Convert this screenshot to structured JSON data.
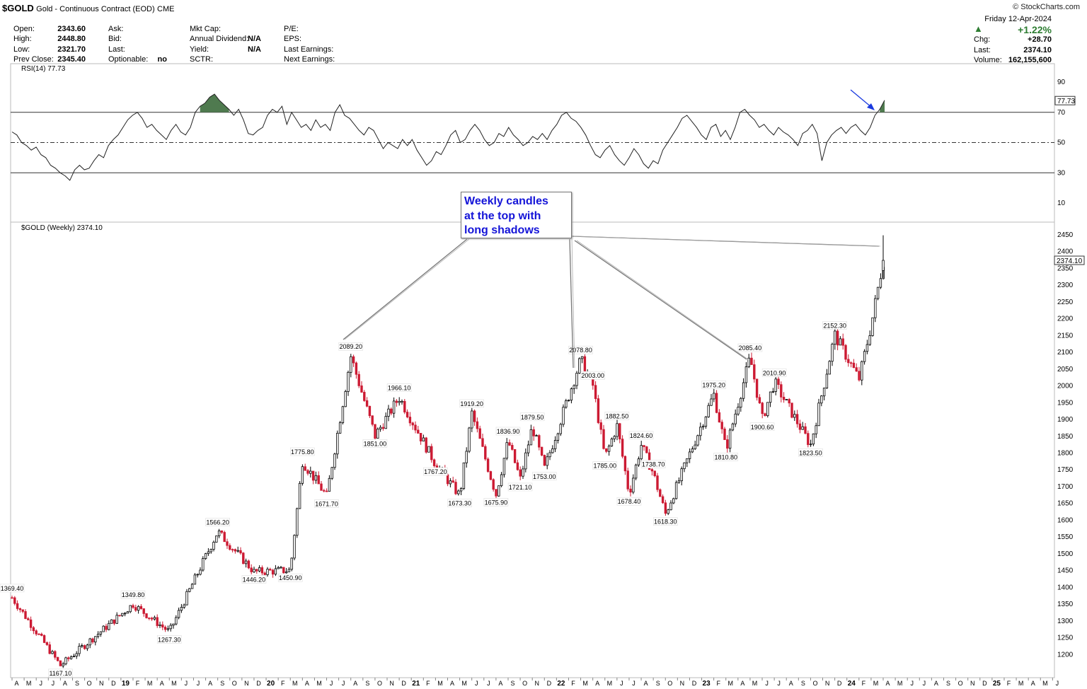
{
  "header": {
    "symbol": "$GOLD",
    "description": "Gold - Continuous Contract (EOD)",
    "exchange": "CME",
    "brand": "© StockCharts.com",
    "quote_col1": [
      {
        "label": "Open:",
        "value": "2343.60"
      },
      {
        "label": "High:",
        "value": "2448.80"
      },
      {
        "label": "Low:",
        "value": "2321.70"
      },
      {
        "label": "Prev Close:",
        "value": "2345.40"
      }
    ],
    "quote_col2": [
      {
        "label": "Ask:",
        "value": ""
      },
      {
        "label": "Bid:",
        "value": ""
      },
      {
        "label": "Last:",
        "value": ""
      },
      {
        "label": "Optionable:",
        "value": "no"
      }
    ],
    "quote_col3": [
      {
        "label": "Mkt Cap:",
        "value": ""
      },
      {
        "label": "Annual Dividend:",
        "value": "N/A"
      },
      {
        "label": "Yield:",
        "value": "N/A"
      },
      {
        "label": "SCTR:",
        "value": ""
      }
    ],
    "quote_col4": [
      {
        "label": "P/E:",
        "value": ""
      },
      {
        "label": "EPS:",
        "value": ""
      },
      {
        "label": "Last Earnings:",
        "value": ""
      },
      {
        "label": "Next Earnings:",
        "value": ""
      }
    ],
    "date": "Friday  12-Apr-2024",
    "pct_change": "+1.22%",
    "chg_label": "Chg:",
    "chg_value": "+28.70",
    "last_label": "Last:",
    "last_value": "2374.10",
    "volume_label": "Volume:",
    "volume_value": "162,155,600",
    "up_color": "#2e7d32"
  },
  "annotation": {
    "callout_lines": [
      "Weekly candles",
      "at the top with",
      "long shadows"
    ],
    "text_color": "#1414d8"
  },
  "chart_data": [
    {
      "type": "line",
      "name": "RSI panel",
      "title": "RSI(14) 77.73",
      "current_label": "77.73",
      "ylim": [
        0,
        100
      ],
      "y_ticks": [
        10,
        30,
        50,
        70,
        90
      ],
      "reference_lines": [
        30,
        50,
        70
      ],
      "overbought_fill_color": "#4f7a4f",
      "x_start": "2018-04",
      "x_end": "2024-04",
      "values": [
        57,
        55,
        50,
        48,
        45,
        47,
        42,
        40,
        35,
        33,
        30,
        28,
        25,
        32,
        35,
        32,
        33,
        38,
        42,
        40,
        48,
        52,
        55,
        60,
        65,
        68,
        70,
        66,
        60,
        62,
        58,
        55,
        52,
        58,
        62,
        57,
        55,
        60,
        70,
        74,
        76,
        80,
        82,
        78,
        75,
        72,
        68,
        72,
        65,
        56,
        55,
        58,
        60,
        68,
        72,
        70,
        74,
        62,
        70,
        65,
        60,
        62,
        58,
        65,
        60,
        62,
        58,
        70,
        75,
        68,
        66,
        62,
        58,
        55,
        60,
        58,
        52,
        46,
        50,
        48,
        46,
        52,
        48,
        52,
        45,
        40,
        35,
        38,
        44,
        42,
        48,
        55,
        58,
        50,
        52,
        58,
        62,
        58,
        52,
        48,
        50,
        56,
        54,
        60,
        55,
        52,
        48,
        50,
        54,
        52,
        56,
        52,
        58,
        62,
        68,
        70,
        66,
        64,
        60,
        55,
        48,
        42,
        40,
        45,
        48,
        42,
        38,
        35,
        40,
        46,
        42,
        36,
        33,
        38,
        36,
        45,
        50,
        55,
        60,
        66,
        68,
        64,
        60,
        55,
        52,
        60,
        62,
        54,
        58,
        52,
        60,
        70,
        72,
        68,
        65,
        60,
        62,
        58,
        55,
        60,
        57,
        55,
        52,
        48,
        56,
        58,
        62,
        56,
        38,
        50,
        55,
        58,
        60,
        56,
        60,
        62,
        58,
        55,
        60,
        68,
        72,
        78
      ]
    },
    {
      "type": "candlestick",
      "name": "$GOLD weekly price",
      "title": "$GOLD (Weekly) 2374.10",
      "last_label": "2374.10",
      "ylim": [
        1150,
        2475
      ],
      "y_ticks": [
        1200,
        1250,
        1300,
        1350,
        1400,
        1450,
        1500,
        1550,
        1600,
        1650,
        1700,
        1750,
        1800,
        1850,
        1900,
        1950,
        2000,
        2050,
        2100,
        2150,
        2200,
        2250,
        2300,
        2350,
        2400,
        2450
      ],
      "up_color": "#000000",
      "down_color": "#cc1a33",
      "x_start": "2018-04",
      "x_end": "2024-04",
      "key_points": [
        {
          "date": "2018-04",
          "close": 1369.4,
          "label": "1369.40",
          "label_pos": "above"
        },
        {
          "date": "2018-08",
          "close": 1167.1,
          "label": "1167.10",
          "label_pos": "below"
        },
        {
          "date": "2019-02",
          "close": 1349.8,
          "label": "1349.80",
          "label_pos": "above"
        },
        {
          "date": "2019-05",
          "close": 1267.3,
          "label": "1267.30",
          "label_pos": "below"
        },
        {
          "date": "2019-09",
          "close": 1566.2,
          "label": "1566.20",
          "label_pos": "above"
        },
        {
          "date": "2019-12",
          "close": 1446.2,
          "label": "1446.20",
          "label_pos": "below"
        },
        {
          "date": "2020-03",
          "close": 1450.9,
          "label": "1450.90",
          "label_pos": "below"
        },
        {
          "date": "2020-04",
          "close": 1775.8,
          "label": "1775.80",
          "label_pos": "above"
        },
        {
          "date": "2020-06",
          "close": 1671.7,
          "label": "1671.70",
          "label_pos": "below"
        },
        {
          "date": "2020-08",
          "close": 2089.2,
          "label": "2089.20",
          "label_pos": "above"
        },
        {
          "date": "2020-10",
          "close": 1851.0,
          "label": "1851.00",
          "label_pos": "below"
        },
        {
          "date": "2020-12",
          "close": 1966.1,
          "label": "1966.10",
          "label_pos": "above"
        },
        {
          "date": "2021-03",
          "close": 1767.2,
          "label": "1767.20",
          "label_pos": "below"
        },
        {
          "date": "2021-05",
          "close": 1673.3,
          "label": "1673.30",
          "label_pos": "below"
        },
        {
          "date": "2021-06",
          "close": 1919.2,
          "label": "1919.20",
          "label_pos": "above"
        },
        {
          "date": "2021-08",
          "close": 1675.9,
          "label": "1675.90",
          "label_pos": "below"
        },
        {
          "date": "2021-09",
          "close": 1836.9,
          "label": "1836.90",
          "label_pos": "above"
        },
        {
          "date": "2021-10",
          "close": 1721.1,
          "label": "1721.10",
          "label_pos": "below"
        },
        {
          "date": "2021-11",
          "close": 1879.5,
          "label": "1879.50",
          "label_pos": "above"
        },
        {
          "date": "2021-12",
          "close": 1753.0,
          "label": "1753.00",
          "label_pos": "below"
        },
        {
          "date": "2022-03",
          "close": 2078.8,
          "label": "2078.80",
          "label_pos": "above"
        },
        {
          "date": "2022-04",
          "close": 2003.0,
          "label": "2003.00",
          "label_pos": "above"
        },
        {
          "date": "2022-05",
          "close": 1785.0,
          "label": "1785.00",
          "label_pos": "below"
        },
        {
          "date": "2022-06",
          "close": 1882.5,
          "label": "1882.50",
          "label_pos": "above"
        },
        {
          "date": "2022-07",
          "close": 1678.4,
          "label": "1678.40",
          "label_pos": "below"
        },
        {
          "date": "2022-08",
          "close": 1824.6,
          "label": "1824.60",
          "label_pos": "above"
        },
        {
          "date": "2022-09",
          "close": 1738.7,
          "label": "1738.70",
          "label_pos": "above"
        },
        {
          "date": "2022-10",
          "close": 1618.3,
          "label": "1618.30",
          "label_pos": "below"
        },
        {
          "date": "2023-02",
          "close": 1975.2,
          "label": "1975.20",
          "label_pos": "above"
        },
        {
          "date": "2023-03",
          "close": 1810.8,
          "label": "1810.80",
          "label_pos": "below"
        },
        {
          "date": "2023-05",
          "close": 2085.4,
          "label": "2085.40",
          "label_pos": "above"
        },
        {
          "date": "2023-06",
          "close": 1900.6,
          "label": "1900.60",
          "label_pos": "below"
        },
        {
          "date": "2023-07",
          "close": 2010.9,
          "label": "2010.90",
          "label_pos": "above"
        },
        {
          "date": "2023-10",
          "close": 1823.5,
          "label": "1823.50",
          "label_pos": "below"
        },
        {
          "date": "2023-12",
          "close": 2152.3,
          "label": "2152.30",
          "label_pos": "above"
        },
        {
          "date": "2024-02",
          "close": 2020.0
        },
        {
          "date": "2024-03",
          "close": 2180.0
        },
        {
          "date": "2024-04",
          "close": 2374.1
        }
      ]
    }
  ],
  "x_axis": {
    "labels": [
      "A",
      "M",
      "J",
      "J",
      "A",
      "S",
      "O",
      "N",
      "D",
      "19",
      "F",
      "M",
      "A",
      "M",
      "J",
      "J",
      "A",
      "S",
      "O",
      "N",
      "D",
      "20",
      "F",
      "M",
      "A",
      "M",
      "J",
      "J",
      "A",
      "S",
      "O",
      "N",
      "D",
      "21",
      "F",
      "M",
      "A",
      "M",
      "J",
      "J",
      "A",
      "S",
      "O",
      "N",
      "D",
      "22",
      "F",
      "M",
      "A",
      "M",
      "J",
      "J",
      "A",
      "S",
      "O",
      "N",
      "D",
      "23",
      "F",
      "M",
      "A",
      "M",
      "J",
      "J",
      "A",
      "S",
      "O",
      "N",
      "D",
      "24",
      "F",
      "M",
      "A",
      "M",
      "J",
      "J",
      "A",
      "S",
      "O",
      "N",
      "D",
      "25",
      "F",
      "M",
      "A",
      "M",
      "J"
    ]
  }
}
